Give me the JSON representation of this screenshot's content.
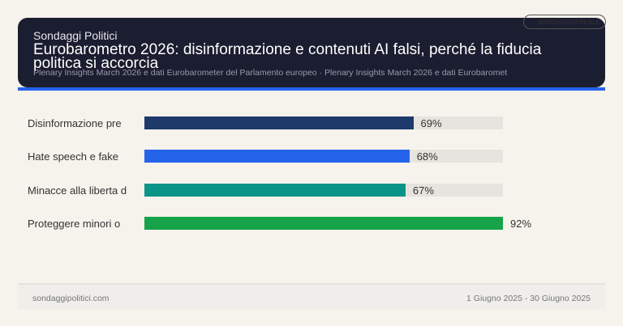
{
  "header": {
    "brand": "Sondaggi Politici",
    "title": "Eurobarometro 2026: disinformazione e contenuti AI falsi, perché la fiducia politica si accorcia",
    "subtitle": "Plenary Insights March 2026 e dati Eurobarometer del Parlamento europeo · Plenary Insights March 2026 e dati Eurobaromet",
    "badge": "SONDAGGIO REALE",
    "accent_color": "#2563eb"
  },
  "chart_data": {
    "type": "bar",
    "orientation": "horizontal",
    "categories": [
      "Disinformazione pre",
      "Hate speech e fake",
      "Minacce alla liberta d",
      "Proteggere minori o"
    ],
    "values": [
      69,
      68,
      67,
      92
    ],
    "value_labels": [
      "69%",
      "68%",
      "67%",
      "92%"
    ],
    "colors": [
      "#1e3a6a",
      "#2563eb",
      "#0d9488",
      "#16a34a"
    ],
    "xlim": [
      0,
      92
    ],
    "grid": false
  },
  "footer": {
    "source": "sondaggipolitici.com",
    "date_range": "1 Giugno 2025 - 30 Giugno 2025"
  }
}
